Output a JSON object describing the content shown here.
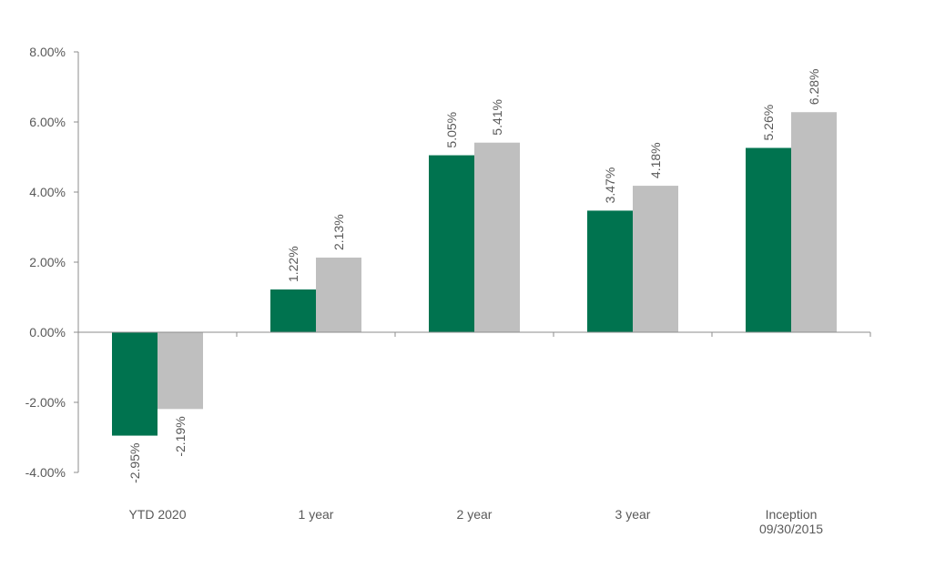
{
  "chart_data": {
    "type": "bar",
    "categories": [
      [
        "YTD 2020"
      ],
      [
        "1 year"
      ],
      [
        "2 year"
      ],
      [
        "3 year"
      ],
      [
        "Inception",
        "09/30/2015"
      ]
    ],
    "series": [
      {
        "values": [
          -2.95,
          1.22,
          5.05,
          3.47,
          5.26
        ],
        "labels": [
          "-2.95%",
          "1.22%",
          "5.05%",
          "3.47%",
          "5.26%"
        ]
      },
      {
        "values": [
          -2.19,
          2.13,
          5.41,
          4.18,
          6.28
        ],
        "labels": [
          "-2.19%",
          "2.13%",
          "5.41%",
          "4.18%",
          "6.28%"
        ]
      }
    ],
    "colors": [
      "#00734f",
      "#bfbfbf"
    ],
    "ylim": [
      -4,
      8
    ],
    "yticks": [
      "-4.00%",
      "-2.00%",
      "0.00%",
      "2.00%",
      "4.00%",
      "6.00%",
      "8.00%"
    ],
    "ytick_values": [
      -4,
      -2,
      0,
      2,
      4,
      6,
      8
    ],
    "grid": false,
    "legend": false
  }
}
